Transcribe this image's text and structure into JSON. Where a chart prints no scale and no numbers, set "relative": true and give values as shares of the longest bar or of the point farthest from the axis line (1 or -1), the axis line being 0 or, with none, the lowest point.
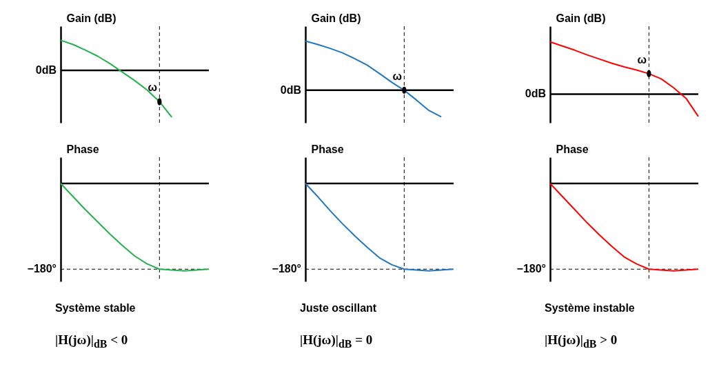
{
  "chart_data": [
    {
      "type": "line",
      "relative": true,
      "ylabel": "Gain (dB)",
      "categories": [
        null,
        null,
        null,
        null,
        null,
        null,
        null,
        null,
        null,
        null,
        null,
        null,
        null
      ],
      "series": [
        {
          "color": "#22b14c",
          "values": [
            0.64,
            0.55,
            0.43,
            0.3,
            0.14,
            -0.04,
            -0.22,
            -0.42,
            -0.67,
            -1,
            null,
            null,
            null
          ]
        }
      ],
      "ref_lines": [
        {
          "axis": "y",
          "value": 0,
          "label": "0dB",
          "line_style": "solid"
        }
      ],
      "annotations": [
        "ω"
      ]
    },
    {
      "type": "line",
      "relative": true,
      "ylabel": "Gain (dB)",
      "categories": [
        null,
        null,
        null,
        null,
        null,
        null,
        null,
        null,
        null,
        null,
        null,
        null,
        null
      ],
      "series": [
        {
          "color": "#1f77c4",
          "values": [
            1,
            0.93,
            0.85,
            0.76,
            0.64,
            0.51,
            0.34,
            0.16,
            0,
            -0.2,
            -0.41,
            -0.54,
            null
          ]
        }
      ],
      "ref_lines": [
        {
          "axis": "y",
          "value": 0,
          "label": "0dB",
          "line_style": "solid"
        }
      ],
      "annotations": [
        "ω"
      ]
    },
    {
      "type": "line",
      "relative": true,
      "ylabel": "Gain (dB)",
      "categories": [
        null,
        null,
        null,
        null,
        null,
        null,
        null,
        null,
        null,
        null,
        null,
        null,
        null
      ],
      "series": [
        {
          "color": "#ff0000",
          "values": [
            1,
            0.92,
            0.84,
            0.75,
            0.67,
            0.59,
            0.52,
            0.46,
            0.39,
            0.29,
            0.12,
            -0.08,
            -0.43
          ]
        }
      ],
      "ref_lines": [
        {
          "axis": "y",
          "value": 0,
          "label": "0dB",
          "line_style": "solid"
        }
      ],
      "annotations": [
        "ω"
      ]
    },
    {
      "type": "line",
      "relative": true,
      "ylabel": "Phase",
      "categories": [
        null,
        null,
        null,
        null,
        null,
        null,
        null,
        null,
        null,
        null,
        null,
        null,
        null
      ],
      "series": [
        {
          "color": "#22b14c",
          "values": [
            0,
            -0.15,
            -0.3,
            -0.44,
            -0.58,
            -0.71,
            -0.83,
            -0.92,
            -0.98,
            -0.99,
            -1,
            -0.99,
            -0.98
          ]
        }
      ],
      "ref_lines": [
        {
          "axis": "y",
          "value": 0,
          "line_style": "solid"
        },
        {
          "axis": "y",
          "value": -0.98,
          "label": "−180°",
          "line_style": "dashed"
        }
      ],
      "annotations": [
        "Système stable",
        "|H(jω)|$_{dB}$ < 0"
      ]
    },
    {
      "type": "line",
      "relative": true,
      "ylabel": "Phase",
      "categories": [
        null,
        null,
        null,
        null,
        null,
        null,
        null,
        null,
        null,
        null,
        null,
        null,
        null
      ],
      "series": [
        {
          "color": "#1f77c4",
          "values": [
            0,
            -0.15,
            -0.31,
            -0.46,
            -0.6,
            -0.73,
            -0.85,
            -0.93,
            -0.98,
            -0.99,
            -1,
            -0.99,
            -0.98
          ]
        }
      ],
      "ref_lines": [
        {
          "axis": "y",
          "value": 0,
          "line_style": "solid"
        },
        {
          "axis": "y",
          "value": -0.98,
          "label": "−180°",
          "line_style": "dashed"
        }
      ],
      "annotations": [
        "Juste oscillant",
        "|H(jω)|$_{dB}$ = 0"
      ]
    },
    {
      "type": "line",
      "relative": true,
      "ylabel": "Phase",
      "categories": [
        null,
        null,
        null,
        null,
        null,
        null,
        null,
        null,
        null,
        null,
        null,
        null,
        null
      ],
      "series": [
        {
          "color": "#ff0000",
          "values": [
            0,
            -0.15,
            -0.3,
            -0.45,
            -0.59,
            -0.72,
            -0.84,
            -0.92,
            -0.98,
            -0.99,
            -1,
            -0.99,
            -0.98
          ]
        }
      ],
      "ref_lines": [
        {
          "axis": "y",
          "value": 0,
          "line_style": "solid"
        },
        {
          "axis": "y",
          "value": -0.98,
          "label": "−180°",
          "line_style": "dashed"
        }
      ],
      "annotations": [
        "Système instable",
        "|H(jω)|$_{dB}$ > 0"
      ]
    }
  ]
}
